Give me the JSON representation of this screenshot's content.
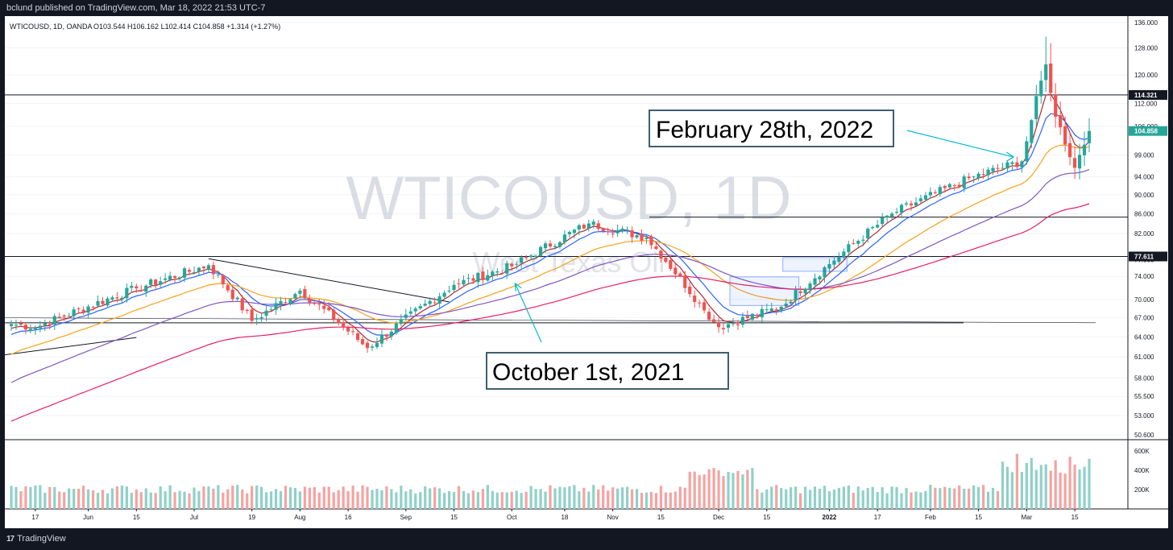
{
  "header": {
    "published": "bclund published on TradingView.com, Mar 18, 2022 21:53 UTC-7"
  },
  "legend": {
    "symbol": "WTICOUSD, 1D, OANDA",
    "ohlc": "O103.544 H106.162 L102.414 C104.858 +1.314 (+1.27%)"
  },
  "watermark": {
    "ticker": "WTICOUSD, 1D",
    "name": "West Texas Oil"
  },
  "annotations": {
    "feb": "February 28th, 2022",
    "oct": "October 1st, 2021"
  },
  "footer": {
    "brand": "TradingView",
    "logo": "17"
  },
  "colors": {
    "up": "#26a69a",
    "down": "#ef5350",
    "ema_red": "#b22833",
    "ema_blue": "#2962ff",
    "ema_orange": "#f7a21b",
    "ema_purple": "#7e57c2",
    "ema_crimson": "#e91e63",
    "arrow": "#00bcd4"
  },
  "chart_data": {
    "type": "candlestick",
    "y_axis": {
      "scale": "log",
      "range": [
        50.6,
        136.0
      ],
      "ticks": [
        "136.000",
        "128.000",
        "120.000",
        "112.000",
        "106.000",
        "99.000",
        "94.000",
        "90.000",
        "86.000",
        "82.000",
        "77.000",
        "74.000",
        "70.000",
        "67.000",
        "64.000",
        "61.000",
        "58.000",
        "55.500",
        "53.000",
        "50.600"
      ]
    },
    "x_axis": {
      "ticks": [
        "17",
        "Jun",
        "15",
        "Jul",
        "19",
        "Aug",
        "16",
        "Sep",
        "15",
        "Oct",
        "18",
        "Nov",
        "15",
        "Dec",
        "15",
        "2022",
        "17",
        "Feb",
        "15",
        "Mar",
        "15"
      ]
    },
    "price_labels": [
      "114.321",
      "104.858",
      "77.611"
    ],
    "volume_axis": {
      "ticks": [
        "600K",
        "400K",
        "200K"
      ]
    },
    "horizontal_levels": [
      114.321,
      85.3,
      77.611,
      66.2
    ],
    "last_close": 104.858,
    "key_points": [
      {
        "date": "2021-05-17",
        "close": 65.5
      },
      {
        "date": "2021-06-15",
        "close": 71.9
      },
      {
        "date": "2021-07-06",
        "close": 76.0
      },
      {
        "date": "2021-07-19",
        "close": 66.5
      },
      {
        "date": "2021-08-02",
        "close": 71.5
      },
      {
        "date": "2021-08-20",
        "close": 62.3
      },
      {
        "date": "2021-09-15",
        "close": 72.5
      },
      {
        "date": "2021-10-01",
        "close": 75.8
      },
      {
        "date": "2021-10-25",
        "close": 84.0
      },
      {
        "date": "2021-11-10",
        "close": 81.2
      },
      {
        "date": "2021-11-26",
        "close": 68.2
      },
      {
        "date": "2021-12-01",
        "close": 65.5
      },
      {
        "date": "2021-12-20",
        "close": 68.8
      },
      {
        "date": "2022-01-03",
        "close": 76.2
      },
      {
        "date": "2022-01-20",
        "close": 86.0
      },
      {
        "date": "2022-02-14",
        "close": 94.0
      },
      {
        "date": "2022-02-28",
        "close": 97.5
      },
      {
        "date": "2022-03-07",
        "close": 123.0
      },
      {
        "date": "2022-03-09",
        "close": 108.5
      },
      {
        "date": "2022-03-15",
        "close": 96.0
      },
      {
        "date": "2022-03-18",
        "close": 104.858
      }
    ]
  }
}
